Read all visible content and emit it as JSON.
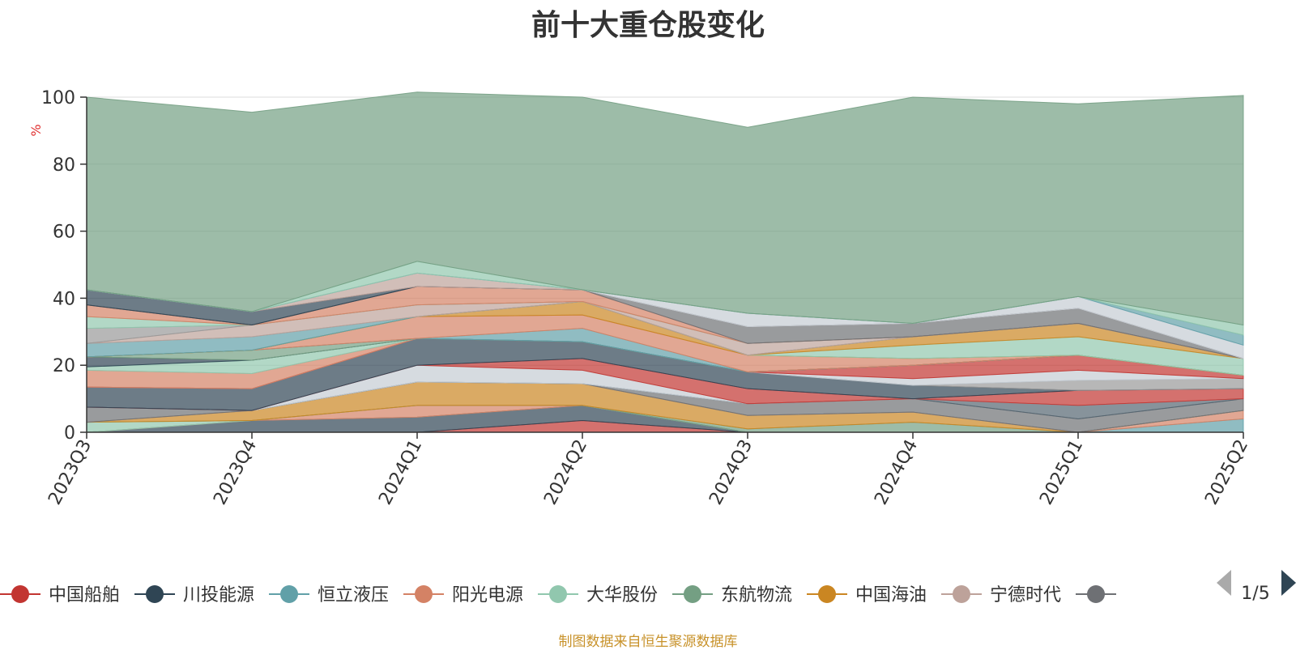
{
  "chart_data": {
    "type": "area",
    "stacked": true,
    "title": "前十大重仓股变化",
    "ylabel": "%",
    "ylim": [
      0,
      100
    ],
    "yticks": [
      0,
      20,
      40,
      60,
      80,
      100
    ],
    "categories": [
      "2023Q3",
      "2023Q4",
      "2024Q1",
      "2024Q2",
      "2024Q3",
      "2024Q4",
      "2025Q1",
      "2025Q2"
    ],
    "grid": true,
    "legend_position": "bottom",
    "legend_page": "1/5",
    "series": [
      {
        "name": "中国船舶",
        "color": "#c23531",
        "values": [
          0,
          0,
          0,
          3.5,
          0,
          0,
          0,
          0
        ]
      },
      {
        "name": "川投能源",
        "color": "#2f4554",
        "values": [
          0,
          3.5,
          4.5,
          4.5,
          0,
          0,
          0,
          0
        ]
      },
      {
        "name": "恒立液压",
        "color": "#61a0a8",
        "values": [
          0,
          0,
          0,
          0,
          0,
          0,
          0,
          4
        ]
      },
      {
        "name": "阳光电源",
        "color": "#d48265",
        "values": [
          0,
          0,
          3.5,
          0,
          0,
          0,
          0,
          2.5
        ]
      },
      {
        "name": "大华股份",
        "color": "#91c7ae",
        "values": [
          3,
          0,
          0,
          0,
          0,
          0,
          0,
          0
        ]
      },
      {
        "name": "东航物流",
        "color": "#749f83",
        "values": [
          0,
          0,
          0,
          0,
          1,
          3,
          0,
          0
        ]
      },
      {
        "name": "中国海油",
        "color": "#ca8622",
        "values": [
          0,
          3,
          7,
          6.5,
          4,
          3,
          0,
          0
        ]
      },
      {
        "name": "宁德时代",
        "color": "#bda29a",
        "values": [
          0,
          0,
          0,
          0,
          0,
          0,
          0,
          0
        ]
      },
      {
        "name": "",
        "color": "#6e7074",
        "values": [
          4.5,
          0,
          0,
          0,
          3.5,
          4,
          4,
          3.5
        ]
      },
      {
        "name": "",
        "color": "#546570",
        "values": [
          0,
          0,
          0,
          0,
          0,
          0,
          4,
          0
        ]
      },
      {
        "name": "",
        "color": "#c4ccd3",
        "values": [
          0,
          0,
          5,
          4,
          0,
          0,
          0,
          0
        ]
      },
      {
        "name": "",
        "color": "#c23531",
        "values": [
          0,
          0,
          0,
          3.5,
          4.5,
          0,
          4.5,
          3
        ]
      },
      {
        "name": "",
        "color": "#2f4554",
        "values": [
          6,
          6.5,
          8,
          5,
          5,
          4,
          0,
          0
        ]
      },
      {
        "name": "",
        "color": "#999999",
        "values": [
          0,
          0,
          0,
          0,
          0,
          0,
          3,
          3
        ]
      },
      {
        "name": "",
        "color": "#c4ccd3",
        "values": [
          0,
          0,
          0,
          0,
          0,
          2,
          3,
          0
        ]
      },
      {
        "name": "",
        "color": "#c23531",
        "values": [
          0,
          0,
          0,
          0,
          0,
          4,
          4.5,
          1
        ]
      },
      {
        "name": "",
        "color": "#d48265",
        "values": [
          5,
          4.5,
          0,
          0,
          0,
          0,
          0,
          0
        ]
      },
      {
        "name": "",
        "color": "#91c7ae",
        "values": [
          1,
          4,
          0,
          0,
          0,
          0,
          0,
          0
        ]
      },
      {
        "name": "",
        "color": "#2f4554",
        "values": [
          3,
          0,
          0,
          0,
          0,
          0,
          0,
          0
        ]
      },
      {
        "name": "",
        "color": "#749f83",
        "values": [
          0,
          3,
          0,
          0,
          0,
          0,
          0,
          0
        ]
      },
      {
        "name": "",
        "color": "#61a0a8",
        "values": [
          0,
          0,
          0,
          4,
          0,
          0,
          0,
          0
        ]
      },
      {
        "name": "",
        "color": "#d48265",
        "values": [
          0,
          0,
          6.5,
          4,
          5,
          2,
          0,
          0
        ]
      },
      {
        "name": "",
        "color": "#ca8622",
        "values": [
          0,
          0,
          0,
          4,
          0,
          0,
          0,
          0
        ]
      },
      {
        "name": "",
        "color": "#91c7ae",
        "values": [
          0,
          0,
          0,
          0,
          0,
          4,
          5.5,
          5
        ]
      },
      {
        "name": "",
        "color": "#ca8622",
        "values": [
          0,
          0,
          0,
          0,
          0,
          2.5,
          4,
          0
        ]
      },
      {
        "name": "",
        "color": "#61a0a8",
        "values": [
          4,
          4,
          0,
          0,
          0,
          0,
          0,
          0
        ]
      },
      {
        "name": "",
        "color": "#bda29a",
        "values": [
          0,
          3.5,
          3.5,
          0,
          3.5,
          0,
          0,
          0
        ]
      },
      {
        "name": "",
        "color": "#999999",
        "values": [
          4.5,
          0,
          0,
          0,
          0,
          0,
          0,
          0
        ]
      },
      {
        "name": "",
        "color": "#91c7ae",
        "values": [
          3.5,
          0,
          0,
          0,
          0,
          0,
          0,
          0
        ]
      },
      {
        "name": "",
        "color": "#d48265",
        "values": [
          3.5,
          0,
          5.5,
          3.5,
          0,
          0,
          0,
          0
        ]
      },
      {
        "name": "",
        "color": "#6e7074",
        "values": [
          0,
          0,
          0,
          0,
          5,
          4,
          4.5,
          0
        ]
      },
      {
        "name": "",
        "color": "#2f4554",
        "values": [
          4.5,
          4,
          0,
          0,
          0,
          0,
          0,
          0
        ]
      },
      {
        "name": "",
        "color": "#bda29a",
        "values": [
          0,
          0,
          4,
          0,
          0,
          0,
          0,
          0
        ]
      },
      {
        "name": "",
        "color": "#c4ccd3",
        "values": [
          0,
          0,
          0,
          0,
          4,
          0,
          3.5,
          4
        ]
      },
      {
        "name": "",
        "color": "#61a0a8",
        "values": [
          0,
          0,
          0,
          0,
          0,
          0,
          0,
          3
        ]
      },
      {
        "name": "",
        "color": "#91c7ae",
        "values": [
          0,
          0,
          3.5,
          0,
          0,
          0,
          0,
          3
        ]
      },
      {
        "name": "",
        "color": "#749f83",
        "values": [
          57.5,
          59.5,
          50.5,
          57.5,
          55.5,
          67.5,
          57.5,
          68.5
        ]
      }
    ]
  },
  "footer": {
    "source": "制图数据来自恒生聚源数据库"
  }
}
